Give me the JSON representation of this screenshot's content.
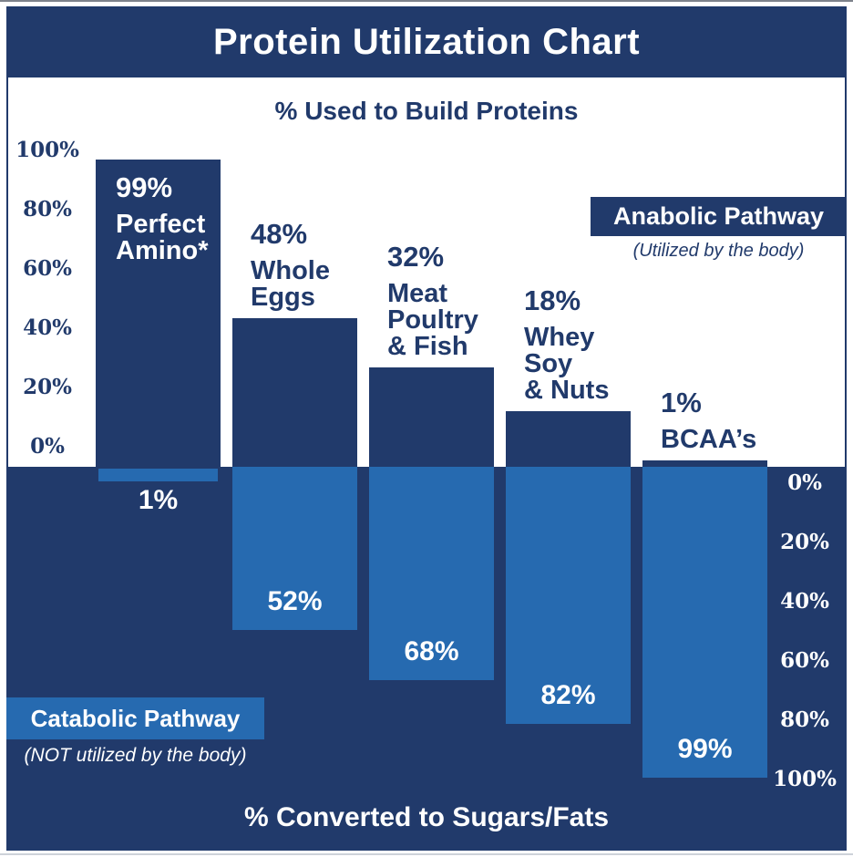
{
  "title": "Protein Utilization Chart",
  "top_section": {
    "heading": "% Used to Build Proteins"
  },
  "bottom_section": {
    "heading": "% Converted to Sugars/Fats"
  },
  "anabolic": {
    "label": "Anabolic Pathway",
    "sublabel": "(Utilized by the body)"
  },
  "catabolic": {
    "label": "Catabolic Pathway",
    "sublabel": "(NOT utilized by the body)"
  },
  "chart_data": {
    "type": "bar",
    "title": "Protein Utilization Chart",
    "orientation": "diverging-vertical",
    "top_axis": {
      "label": "% Used to Build Proteins",
      "side": "left",
      "ticks": [
        "100%",
        "80%",
        "60%",
        "40%",
        "20%",
        "0%"
      ],
      "range": [
        0,
        100
      ]
    },
    "bottom_axis": {
      "label": "% Converted to Sugars/Fats",
      "side": "right",
      "ticks": [
        "0%",
        "20%",
        "40%",
        "60%",
        "80%",
        "100%"
      ],
      "range": [
        0,
        100
      ]
    },
    "categories": [
      "Perfect Amino*",
      "Whole Eggs",
      "Meat Poultry & Fish",
      "Whey Soy & Nuts",
      "BCAA’s"
    ],
    "series": [
      {
        "name": "Anabolic Pathway (% Used to Build Proteins)",
        "color": "#213a6b",
        "values": [
          99,
          48,
          32,
          18,
          1
        ]
      },
      {
        "name": "Catabolic Pathway (% Converted to Sugars/Fats)",
        "color": "#266ab0",
        "values": [
          1,
          52,
          68,
          82,
          99
        ]
      }
    ],
    "columns": [
      {
        "category_lines": [
          "Perfect",
          "Amino*"
        ],
        "top_value_label": "99%",
        "bottom_value_label": "1%"
      },
      {
        "category_lines": [
          "Whole",
          "Eggs"
        ],
        "top_value_label": "48%",
        "bottom_value_label": "52%"
      },
      {
        "category_lines": [
          "Meat",
          "Poultry",
          "& Fish"
        ],
        "top_value_label": "32%",
        "bottom_value_label": "68%"
      },
      {
        "category_lines": [
          "Whey",
          "Soy",
          "& Nuts"
        ],
        "top_value_label": "18%",
        "bottom_value_label": "82%"
      },
      {
        "category_lines": [
          "BCAA’s"
        ],
        "top_value_label": "1%",
        "bottom_value_label": "99%"
      }
    ],
    "legend": [
      {
        "label": "Anabolic Pathway",
        "sublabel": "(Utilized by the body)",
        "color": "#213a6b"
      },
      {
        "label": "Catabolic Pathway",
        "sublabel": "(NOT utilized by the body)",
        "color": "#266ab0"
      }
    ],
    "colors": {
      "navy": "#213a6b",
      "light_blue": "#266ab0",
      "background": "#ffffff"
    }
  }
}
